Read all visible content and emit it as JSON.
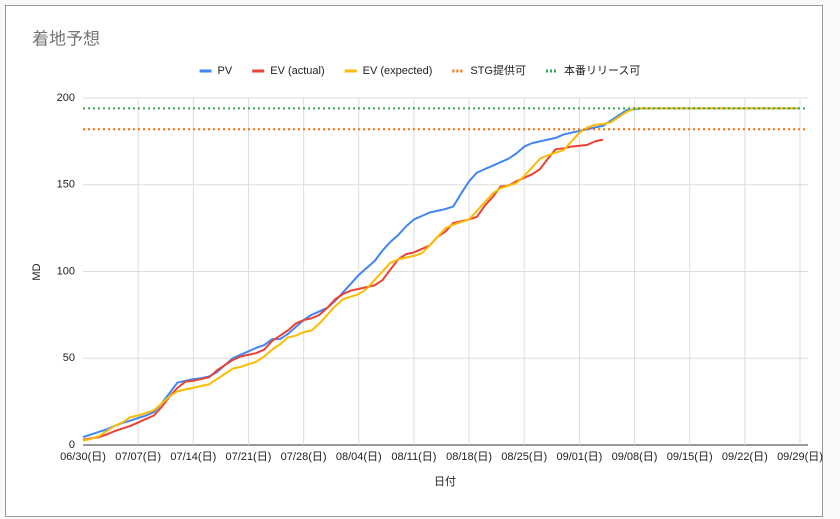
{
  "chart_data": {
    "type": "line",
    "title": "着地予想",
    "x_label": "日付",
    "y_label": "MD",
    "categories": [
      "06/30(日)",
      null,
      null,
      null,
      null,
      null,
      null,
      "07/07(日)",
      null,
      null,
      null,
      null,
      null,
      null,
      "07/14(日)",
      null,
      null,
      null,
      null,
      null,
      null,
      "07/21(日)",
      null,
      null,
      null,
      null,
      null,
      null,
      "07/28(日)",
      null,
      null,
      null,
      null,
      null,
      null,
      "08/04(日)",
      null,
      null,
      null,
      null,
      null,
      null,
      "08/11(日)",
      null,
      null,
      null,
      null,
      null,
      null,
      "08/18(日)",
      null,
      null,
      null,
      null,
      null,
      null,
      "08/25(日)",
      null,
      null,
      null,
      null,
      null,
      null,
      "09/01(日)",
      null,
      null,
      null,
      null,
      null,
      null,
      "09/08(日)",
      null,
      null,
      null,
      null,
      null,
      null,
      "09/15(日)",
      null,
      null,
      null,
      null,
      null,
      null,
      "09/22(日)",
      null,
      null,
      null,
      null,
      null,
      null,
      "09/29(日)"
    ],
    "series": [
      {
        "name": "PV",
        "color": "#4285f4",
        "values": [
          4.6,
          6,
          7.5,
          9,
          11,
          12.7,
          14,
          15.5,
          17,
          19,
          24,
          30,
          36,
          37,
          38,
          38.5,
          39.5,
          42,
          46,
          50,
          52,
          54,
          56,
          57.6,
          61,
          61,
          64,
          68,
          72,
          75,
          77,
          79,
          83,
          88,
          93,
          98,
          102,
          106,
          112,
          117,
          121,
          126,
          130,
          132,
          134,
          135,
          136,
          137.5,
          145,
          152,
          157,
          159,
          161,
          163,
          165,
          168,
          172,
          174,
          175,
          176,
          177,
          179,
          180,
          181,
          182,
          183,
          184,
          187,
          190,
          193,
          193.5,
          194,
          194,
          194,
          194,
          194,
          194,
          194,
          194,
          194,
          194,
          194,
          194,
          194,
          194,
          194,
          194,
          194,
          194,
          194,
          194,
          194
        ]
      },
      {
        "name": "EV (actual)",
        "color": "#ea4335",
        "values": [
          3,
          3.8,
          4.5,
          6,
          8,
          9.5,
          11,
          13,
          15,
          17,
          22,
          28,
          33,
          36.5,
          37,
          38,
          39,
          43,
          46,
          49,
          51,
          52,
          53,
          55,
          60,
          63,
          66,
          70,
          72,
          73,
          75,
          79,
          84,
          87,
          89,
          90,
          91,
          92,
          95,
          101,
          107,
          110,
          111,
          113,
          115,
          120,
          123,
          128,
          129,
          130,
          131.5,
          138,
          143,
          149,
          149.5,
          152,
          154,
          156,
          159,
          165,
          170.5,
          171,
          172,
          172.5,
          173,
          175,
          176,
          null,
          null,
          null,
          null,
          null,
          null,
          null,
          null,
          null,
          null,
          null,
          null,
          null,
          null,
          null,
          null,
          null,
          null,
          null,
          null,
          null,
          null,
          null,
          null,
          null
        ]
      },
      {
        "name": "EV (expected)",
        "color": "#fbbc04",
        "values": [
          2.5,
          3.5,
          5,
          8,
          11,
          13,
          16,
          17,
          18.5,
          20,
          24,
          28,
          31,
          32,
          33,
          34,
          35,
          38,
          41,
          44,
          45,
          46.5,
          48,
          51,
          55,
          58,
          62,
          63,
          65,
          66,
          70,
          75,
          80,
          84,
          85.5,
          87,
          90,
          95,
          100,
          105,
          107,
          108,
          109,
          110.5,
          115,
          120,
          125,
          127,
          128.5,
          130,
          135,
          140,
          145,
          148,
          149.5,
          151,
          155,
          160,
          165,
          167,
          168.5,
          170,
          175,
          180,
          183,
          184.5,
          185,
          186,
          189,
          192,
          194,
          194,
          194,
          194,
          194,
          194,
          194,
          194,
          194,
          194,
          194,
          194,
          194,
          194,
          194,
          194,
          194,
          194,
          194,
          194,
          194,
          194
        ]
      },
      {
        "name": "STG提供可",
        "color": "#ff6d01",
        "value": 182,
        "dash": "dotted"
      },
      {
        "name": "本番リリース可",
        "color": "#34a853",
        "value": 194,
        "dash": "dotted"
      }
    ],
    "ylim": [
      0,
      200
    ],
    "yticks": [
      0,
      50,
      100,
      150,
      200
    ],
    "grid": true,
    "legend": "top"
  }
}
